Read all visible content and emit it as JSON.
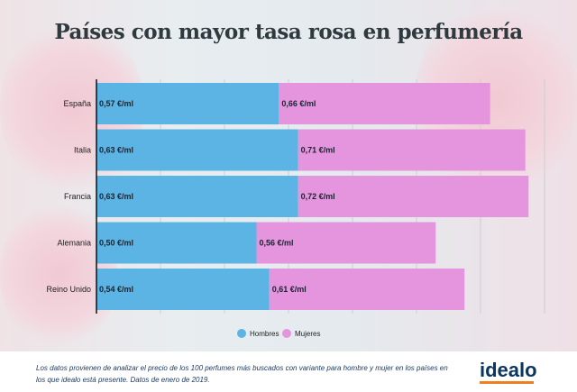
{
  "chart_data": {
    "type": "bar",
    "orientation": "horizontal",
    "stacked": true,
    "title": "Países con mayor tasa rosa en perfumería",
    "categories": [
      "España",
      "Italia",
      "Francia",
      "Alemania",
      "Reino Unido"
    ],
    "series": [
      {
        "name": "Hombres",
        "values": [
          0.57,
          0.63,
          0.63,
          0.5,
          0.54
        ],
        "labels": [
          "0,57 €/ml",
          "0,63 €/ml",
          "0,63 €/ml",
          "0,50 €/ml",
          "0,54 €/ml"
        ],
        "color": "#5bb4e4"
      },
      {
        "name": "Mujeres",
        "values": [
          0.66,
          0.71,
          0.72,
          0.56,
          0.61
        ],
        "labels": [
          "0,66 €/ml",
          "0,71 €/ml",
          "0,72 €/ml",
          "0,56 €/ml",
          "0,61 €/ml"
        ],
        "color": "#e595dd"
      }
    ],
    "xlim": [
      0,
      1.4
    ],
    "grid": true,
    "legend": "bottom"
  },
  "footer": {
    "note": "Los datos provienen de analizar el precio de los 100 perfumes más buscados con variante para hombre y mujer en los países en los que idealo está presente. Datos de enero de 2019.",
    "logo": "idealo"
  }
}
